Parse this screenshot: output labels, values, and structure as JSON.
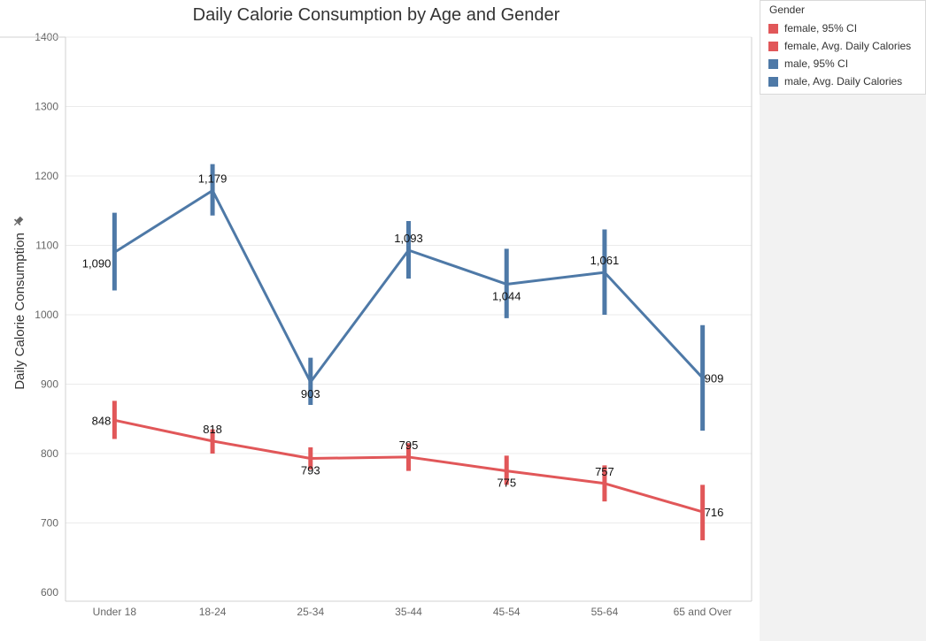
{
  "chart_data": {
    "type": "line",
    "title": "Daily Calorie Consumption by Age and Gender",
    "xlabel": "",
    "ylabel": "Daily Calorie Consumption",
    "ylim": [
      600,
      1400
    ],
    "yticks": [
      600,
      700,
      800,
      900,
      1000,
      1100,
      1200,
      1300,
      1400
    ],
    "categories": [
      "Under 18",
      "18-24",
      "25-34",
      "35-44",
      "45-54",
      "55-64",
      "65 and Over"
    ],
    "grid": true,
    "series": [
      {
        "name": "male, Avg. Daily Calories",
        "color": "#4e79a7",
        "values": [
          1090,
          1179,
          903,
          1093,
          1044,
          1061,
          909
        ],
        "labels": [
          "1,090",
          "1,179",
          "903",
          "1,093",
          "1,044",
          "1,061",
          "909"
        ],
        "ci_low": [
          1035,
          1143,
          870,
          1052,
          995,
          1000,
          833
        ],
        "ci_high": [
          1147,
          1217,
          938,
          1135,
          1095,
          1123,
          985
        ]
      },
      {
        "name": "female, Avg. Daily Calories",
        "color": "#e15759",
        "values": [
          848,
          818,
          793,
          795,
          775,
          757,
          716
        ],
        "labels": [
          "848",
          "818",
          "793",
          "795",
          "775",
          "757",
          "716"
        ],
        "ci_low": [
          821,
          800,
          777,
          775,
          755,
          731,
          675
        ],
        "ci_high": [
          876,
          835,
          809,
          815,
          797,
          783,
          755
        ]
      }
    ]
  },
  "legend": {
    "title": "Gender",
    "placement": "top-right",
    "items": [
      {
        "label": "female, 95% CI",
        "color": "#e15759"
      },
      {
        "label": "female, Avg. Daily Calories",
        "color": "#e15759"
      },
      {
        "label": "male, 95% CI",
        "color": "#4e79a7"
      },
      {
        "label": "male, Avg. Daily Calories",
        "color": "#4e79a7"
      }
    ]
  },
  "axis": {
    "pin_icon": "pin-icon"
  }
}
